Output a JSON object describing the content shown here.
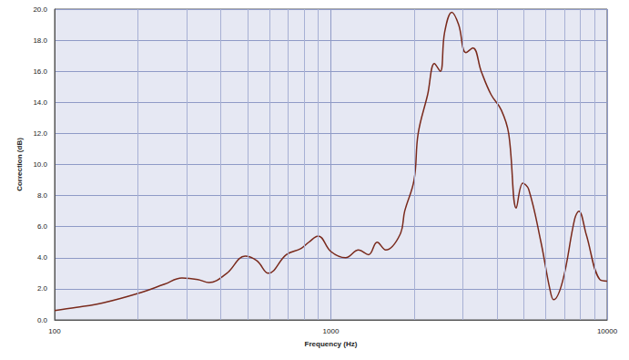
{
  "chart_data": {
    "type": "line",
    "x_label": "Frequency (Hz)",
    "y_label": "Correction (dB)",
    "log": "x",
    "grid": true,
    "color": "#7a2a1c",
    "x": [
      100,
      120,
      150,
      200,
      250,
      289,
      330,
      362,
      420,
      489,
      540,
      594,
      690,
      780,
      832,
      900,
      1000,
      1130,
      1260,
      1370,
      1470,
      1580,
      1780,
      1850,
      2000,
      2070,
      2240,
      2370,
      2490,
      2580,
      2740,
      2900,
      3080,
      3270,
      3500,
      3800,
      4140,
      4400,
      4690,
      4950,
      5200,
      5760,
      6200,
      6400,
      6900,
      7630,
      7900,
      8400,
      9400,
      10000
    ],
    "values": [
      0.6,
      0.8,
      1.1,
      1.7,
      2.3,
      2.7,
      2.6,
      2.4,
      3.0,
      4.1,
      3.8,
      3.0,
      4.2,
      4.6,
      5.0,
      5.4,
      4.4,
      4.0,
      4.5,
      4.2,
      5.0,
      4.5,
      5.5,
      7.0,
      9.0,
      12.0,
      14.5,
      16.5,
      16.0,
      18.5,
      19.8,
      19.0,
      17.2,
      17.5,
      16.0,
      14.5,
      13.5,
      12.0,
      7.2,
      8.8,
      8.4,
      5.0,
      2.0,
      1.3,
      2.5,
      6.5,
      7.0,
      5.5,
      2.6,
      2.5
    ],
    "xlim": [
      100,
      10000
    ],
    "xticks": [
      100,
      1000,
      10000
    ],
    "ylim": [
      0,
      20
    ],
    "yticks": [
      {
        "value": 0,
        "label": "0.0"
      },
      {
        "value": 2,
        "label": "2.0"
      },
      {
        "value": 4,
        "label": "4.0"
      },
      {
        "value": 6,
        "label": "6.0"
      },
      {
        "value": 8,
        "label": "8.0"
      },
      {
        "value": 10,
        "label": "10.0"
      },
      {
        "value": 12,
        "label": "12.0"
      },
      {
        "value": 14,
        "label": "14.0"
      },
      {
        "value": 16,
        "label": "16.0"
      },
      {
        "value": 18,
        "label": "18.0"
      },
      {
        "value": 20,
        "label": "20.0"
      }
    ]
  }
}
